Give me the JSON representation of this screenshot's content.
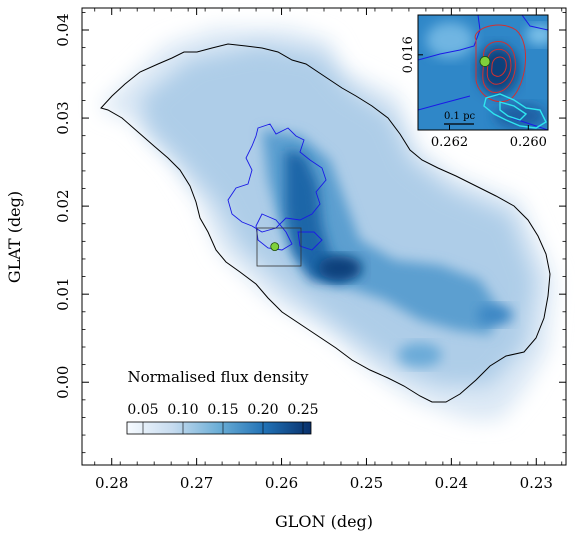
{
  "chart_data": {
    "type": "heatmap",
    "xlabel": "GLON (deg)",
    "ylabel": "GLAT (deg)",
    "xlim": [
      0.2835,
      0.2265
    ],
    "ylim": [
      -0.0094,
      0.0425
    ],
    "xticks": [
      0.28,
      0.27,
      0.26,
      0.25,
      0.24,
      0.23
    ],
    "xtick_labels": [
      "0.28",
      "0.27",
      "0.26",
      "0.25",
      "0.24",
      "0.23"
    ],
    "yticks": [
      0.0,
      0.01,
      0.02,
      0.03,
      0.04
    ],
    "ytick_labels": [
      "0.00",
      "0.01",
      "0.02",
      "0.03",
      "0.04"
    ],
    "colorbar": {
      "label": "Normalised flux density",
      "ticks": [
        0.05,
        0.1,
        0.15,
        0.2,
        0.25
      ],
      "tick_labels": [
        "0.05",
        "0.10",
        "0.15",
        "0.20",
        "0.25"
      ],
      "range": [
        0.03,
        0.26
      ],
      "colormap": [
        "#f7fbff",
        "#c6dbef",
        "#6baed6",
        "#2171b5",
        "#08306b"
      ]
    },
    "marker": {
      "glon": 0.2608,
      "glat": 0.0154,
      "color": "#7fd13b"
    },
    "inset_box": {
      "glon": [
        0.2634,
        0.2574
      ],
      "glat": [
        0.0125,
        0.0175
      ]
    },
    "inset": {
      "xticks": [
        0.262,
        0.26
      ],
      "xtick_labels": [
        "0.262",
        "0.260"
      ],
      "yticks": [
        0.016
      ],
      "ytick_labels": [
        "0.016"
      ],
      "xlim": [
        0.2628,
        0.2595
      ],
      "ylim": [
        0.0126,
        0.0178
      ],
      "scalebar_label": "0.1 pc",
      "marker": {
        "glon": 0.2611,
        "glat": 0.0157
      }
    },
    "grid": false,
    "legend": "none"
  }
}
